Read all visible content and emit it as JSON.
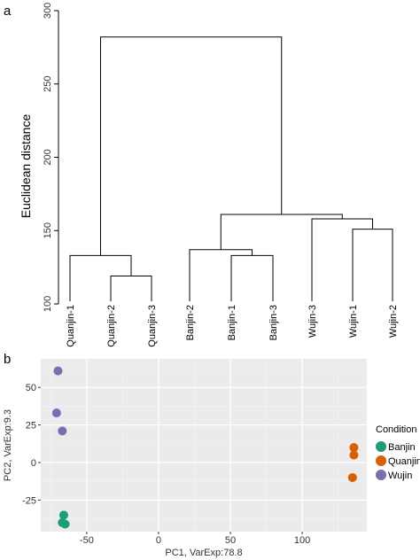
{
  "panels": {
    "a": "a",
    "b": "b"
  },
  "chart_data": [
    {
      "type": "dendrogram",
      "panel": "a",
      "ylabel": "Euclidean distance",
      "ylim": [
        100,
        300
      ],
      "yticks": [
        "100",
        "150",
        "200",
        "250",
        "300"
      ],
      "leaves": [
        "Quanjin-1",
        "Quanjin-2",
        "Quanjin-3",
        "Banjin-2",
        "Banjin-1",
        "Banjin-3",
        "Wujin-3",
        "Wujin-1",
        "Wujin-2"
      ],
      "merges": [
        {
          "left": "Quanjin-2",
          "right": "Quanjin-3",
          "height": 119
        },
        {
          "left": "Quanjin-1",
          "right": "(Quanjin-2, Quanjin-3)",
          "height": 133
        },
        {
          "left": "Banjin-1",
          "right": "Banjin-3",
          "height": 133
        },
        {
          "left": "Banjin-2",
          "right": "(Banjin-1, Banjin-3)",
          "height": 137
        },
        {
          "left": "Wujin-1",
          "right": "Wujin-2",
          "height": 151
        },
        {
          "left": "Wujin-3",
          "right": "(Wujin-1, Wujin-2)",
          "height": 158
        },
        {
          "left": "Banjin cluster",
          "right": "Wujin cluster",
          "height": 161
        },
        {
          "left": "Quanjin cluster",
          "right": "Banjin + Wujin cluster",
          "height": 282
        }
      ]
    },
    {
      "type": "scatter",
      "panel": "b",
      "xlabel": "PC1, VarExp:78.8",
      "ylabel": "PC2, VarExp:9.3",
      "xlim": [
        -82,
        145
      ],
      "ylim": [
        -46,
        69
      ],
      "xticks": [
        "-50",
        "0",
        "50",
        "100"
      ],
      "yticks": [
        "-25",
        "0",
        "25",
        "50"
      ],
      "grid": true,
      "legend_title": "Condition",
      "legend_position": "right",
      "series": [
        {
          "name": "Banjin",
          "color": "#1b9e77",
          "points": [
            [
              -66,
              -35
            ],
            [
              -67,
              -40
            ],
            [
              -65,
              -41
            ]
          ]
        },
        {
          "name": "Quanjing",
          "color": "#d95f02",
          "points": [
            [
              136,
              10
            ],
            [
              136,
              5
            ],
            [
              135,
              -10
            ]
          ]
        },
        {
          "name": "Wujin",
          "color": "#7570b3",
          "points": [
            [
              -70,
              61
            ],
            [
              -71,
              33
            ],
            [
              -67,
              21
            ]
          ]
        }
      ]
    }
  ]
}
